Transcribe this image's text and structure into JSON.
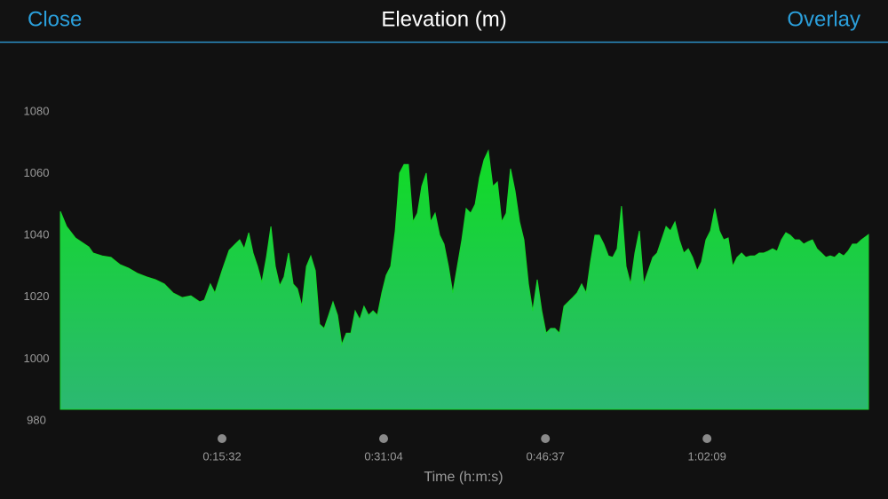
{
  "header": {
    "left": "Close",
    "title": "Elevation (m)",
    "right": "Overlay"
  },
  "chart_data": {
    "type": "area",
    "x_label": "Time (h:m:s)",
    "color": "#16d62c",
    "xlim": [
      0,
      4660
    ],
    "xticks": [
      {
        "value": 932,
        "label": "0:15:32"
      },
      {
        "value": 1864,
        "label": "0:31:04"
      },
      {
        "value": 2797,
        "label": "0:46:37"
      },
      {
        "value": 3729,
        "label": "1:02:09"
      }
    ],
    "ylim": [
      980,
      1100
    ],
    "yticks": [
      980,
      1000,
      1020,
      1040,
      1060,
      1080
    ],
    "x": [
      0,
      36,
      87,
      164,
      189,
      241,
      292,
      343,
      394,
      446,
      497,
      548,
      599,
      650,
      702,
      753,
      804,
      830,
      865,
      891,
      932,
      973,
      1009,
      1034,
      1060,
      1086,
      1111,
      1137,
      1162,
      1188,
      1214,
      1239,
      1265,
      1290,
      1316,
      1342,
      1367,
      1393,
      1419,
      1444,
      1470,
      1495,
      1521,
      1547,
      1572,
      1598,
      1623,
      1649,
      1675,
      1700,
      1726,
      1751,
      1777,
      1803,
      1828,
      1854,
      1879,
      1905,
      1931,
      1956,
      1982,
      2007,
      2033,
      2059,
      2084,
      2110,
      2135,
      2161,
      2187,
      2212,
      2238,
      2263,
      2289,
      2315,
      2340,
      2366,
      2392,
      2417,
      2443,
      2468,
      2494,
      2520,
      2545,
      2571,
      2596,
      2622,
      2648,
      2673,
      2699,
      2724,
      2750,
      2776,
      2801,
      2827,
      2852,
      2878,
      2904,
      2929,
      2955,
      2980,
      3006,
      3032,
      3057,
      3083,
      3108,
      3134,
      3160,
      3185,
      3211,
      3236,
      3262,
      3288,
      3313,
      3339,
      3364,
      3390,
      3416,
      3441,
      3467,
      3493,
      3518,
      3544,
      3569,
      3595,
      3621,
      3646,
      3672,
      3697,
      3723,
      3749,
      3774,
      3800,
      3825,
      3851,
      3877,
      3902,
      3928,
      3953,
      3979,
      4005,
      4030,
      4056,
      4081,
      4107,
      4133,
      4158,
      4184,
      4209,
      4235,
      4261,
      4286,
      4312,
      4337,
      4363,
      4389,
      4414,
      4440,
      4465,
      4491,
      4517,
      4542,
      4568,
      4593,
      4619,
      4660
    ],
    "values": [
      1047.8,
      1042.9,
      1039.2,
      1036.3,
      1034.3,
      1033.4,
      1032.9,
      1030.6,
      1029.4,
      1027.7,
      1026.6,
      1025.7,
      1024.3,
      1021.4,
      1019.9,
      1020.5,
      1018.5,
      1019.1,
      1024.3,
      1021.4,
      1028.6,
      1035.2,
      1037.2,
      1038.6,
      1035.7,
      1040.9,
      1034.3,
      1030,
      1024.8,
      1032.9,
      1042.9,
      1030,
      1023.7,
      1026.6,
      1034.3,
      1024.3,
      1022.8,
      1017.1,
      1030,
      1033.4,
      1028.6,
      1011.3,
      1009.9,
      1014.2,
      1018.5,
      1014.2,
      1004.7,
      1008.4,
      1008.4,
      1015.6,
      1012.8,
      1017.1,
      1014.2,
      1015.6,
      1014.2,
      1021.4,
      1027.1,
      1030,
      1041.5,
      1060.2,
      1063,
      1063,
      1044.4,
      1047.2,
      1055.9,
      1060.2,
      1044.4,
      1047.2,
      1040.1,
      1037.2,
      1030,
      1021.4,
      1030,
      1038.6,
      1048.7,
      1047.2,
      1050.1,
      1058.7,
      1064.5,
      1067.4,
      1055.9,
      1057.3,
      1044.4,
      1047.2,
      1061.6,
      1054.4,
      1044.4,
      1038.6,
      1024.3,
      1015.6,
      1025.7,
      1015.6,
      1008.4,
      1009.9,
      1009.9,
      1008.4,
      1017.1,
      1018.5,
      1019.9,
      1021.4,
      1024.3,
      1021.4,
      1031.4,
      1040.1,
      1040.1,
      1037.2,
      1033.4,
      1032.9,
      1035.7,
      1049.5,
      1030,
      1024.3,
      1034.3,
      1041.5,
      1024.3,
      1028.6,
      1032.9,
      1034.3,
      1038.6,
      1042.9,
      1041.5,
      1044.4,
      1038.6,
      1034.3,
      1035.7,
      1032.9,
      1028.6,
      1031.4,
      1038.6,
      1041.5,
      1048.7,
      1041.5,
      1038.6,
      1039.2,
      1030,
      1032.9,
      1034.3,
      1032.9,
      1033.4,
      1033.4,
      1034.3,
      1034.3,
      1034.9,
      1035.7,
      1034.9,
      1038.6,
      1040.9,
      1040.1,
      1038.6,
      1038.6,
      1037.2,
      1038,
      1038.6,
      1035.7,
      1034.3,
      1032.9,
      1033.4,
      1032.9,
      1034.3,
      1033.4,
      1034.9,
      1037.2,
      1037.2,
      1038.6,
      1040.3
    ]
  }
}
